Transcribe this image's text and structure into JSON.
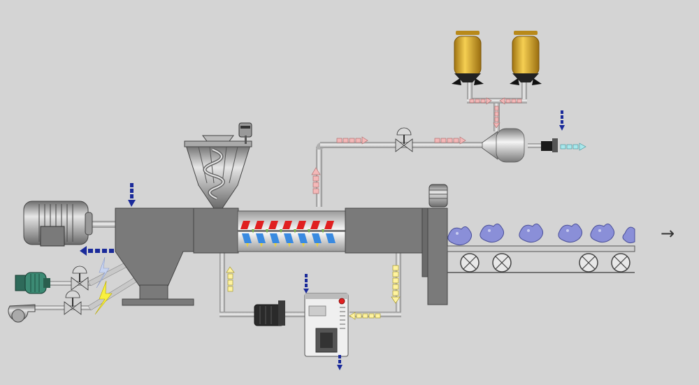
{
  "diagram": {
    "background": "#d4d4d4",
    "colors": {
      "pipe": "#bdbdbd",
      "machine_dark": "#7a7a7a",
      "machine_light": "#9a9a9a",
      "silo": "#e8b52a",
      "flow_pink": "#f4b8b8",
      "flow_yellow": "#fff3a0",
      "flow_blue": "#1a2a9a",
      "flow_cyan": "#a8e8ec",
      "screw_red": "#e02020",
      "screw_blue": "#3a8ae0",
      "product": "#8a8fd8"
    },
    "icons": {
      "motor": "electric-motor-icon",
      "pump": "pump-icon",
      "valve": "valve-icon",
      "silo": "silo-icon",
      "hopper": "screw-feeder-hopper-icon",
      "conveyor": "conveyor-belt-icon",
      "exit": "right-arrow-icon"
    },
    "exit_symbol": "→"
  }
}
